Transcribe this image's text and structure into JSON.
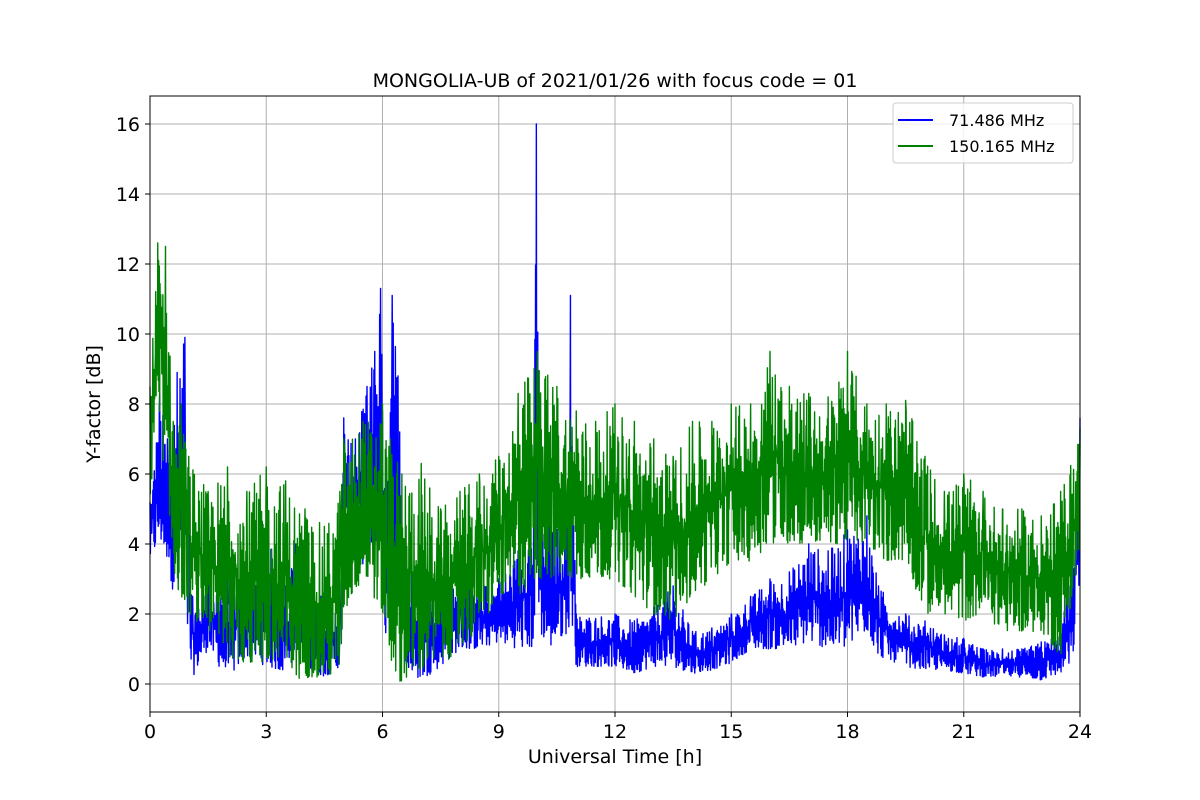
{
  "chart_data": {
    "type": "line",
    "title": "MONGOLIA-UB of 2021/01/26 with focus code = 01",
    "xlabel": "Universal Time [h]",
    "ylabel": "Y-factor [dB]",
    "xlim": [
      0,
      24
    ],
    "ylim": [
      -0.8,
      16.8
    ],
    "xticks": [
      0,
      3,
      6,
      9,
      12,
      15,
      18,
      21,
      24
    ],
    "yticks": [
      0,
      2,
      4,
      6,
      8,
      10,
      12,
      14,
      16
    ],
    "grid": true,
    "legend_position": "top-right",
    "series": [
      {
        "name": "71.486 MHz",
        "color": "#0000ff",
        "envelope": [
          [
            0.0,
            3.5,
            5.2
          ],
          [
            0.25,
            4.0,
            8.3
          ],
          [
            0.45,
            3.5,
            7.0
          ],
          [
            0.7,
            2.0,
            8.9
          ],
          [
            0.9,
            3.0,
            9.9
          ],
          [
            1.0,
            0.5,
            5.0
          ],
          [
            1.1,
            0.2,
            2.5
          ],
          [
            1.5,
            1.0,
            3.0
          ],
          [
            2.0,
            0.1,
            3.2
          ],
          [
            2.5,
            0.8,
            3.0
          ],
          [
            3.0,
            0.5,
            4.2
          ],
          [
            3.5,
            0.3,
            2.8
          ],
          [
            3.75,
            0.8,
            4.0
          ],
          [
            4.0,
            0.5,
            3.0
          ],
          [
            4.5,
            0.2,
            2.5
          ],
          [
            4.9,
            0.5,
            2.0
          ],
          [
            5.0,
            3.0,
            7.6
          ],
          [
            5.3,
            3.3,
            7.0
          ],
          [
            5.6,
            3.5,
            8.5
          ],
          [
            5.8,
            4.0,
            9.5
          ],
          [
            5.95,
            4.0,
            11.3
          ],
          [
            6.1,
            0.8,
            4.0
          ],
          [
            6.25,
            3.0,
            11.1
          ],
          [
            6.4,
            2.0,
            8.8
          ],
          [
            6.6,
            0.3,
            4.0
          ],
          [
            7.0,
            0.1,
            3.5
          ],
          [
            7.5,
            0.5,
            3.0
          ],
          [
            8.0,
            1.0,
            3.0
          ],
          [
            8.5,
            1.0,
            2.8
          ],
          [
            9.0,
            1.2,
            3.0
          ],
          [
            9.5,
            1.0,
            3.8
          ],
          [
            9.9,
            1.0,
            5.0
          ],
          [
            9.97,
            1.5,
            16.0
          ],
          [
            10.05,
            1.5,
            5.0
          ],
          [
            10.3,
            1.0,
            4.5
          ],
          [
            10.8,
            1.5,
            5.0
          ],
          [
            10.85,
            2.0,
            11.1
          ],
          [
            11.0,
            0.5,
            2.0
          ],
          [
            12.0,
            0.5,
            2.0
          ],
          [
            12.5,
            0.3,
            1.8
          ],
          [
            13.0,
            0.5,
            2.2
          ],
          [
            13.5,
            0.5,
            2.8
          ],
          [
            14.0,
            0.3,
            1.5
          ],
          [
            14.5,
            0.4,
            1.6
          ],
          [
            15.0,
            0.6,
            2.0
          ],
          [
            15.5,
            1.0,
            2.5
          ],
          [
            16.0,
            1.0,
            3.0
          ],
          [
            16.5,
            1.0,
            3.2
          ],
          [
            17.0,
            1.2,
            4.0
          ],
          [
            17.5,
            1.0,
            3.8
          ],
          [
            18.0,
            1.0,
            4.4
          ],
          [
            18.5,
            1.5,
            4.8
          ],
          [
            18.8,
            0.8,
            2.8
          ],
          [
            19.5,
            0.5,
            2.0
          ],
          [
            20.0,
            0.4,
            1.8
          ],
          [
            20.5,
            0.4,
            1.4
          ],
          [
            21.0,
            0.3,
            1.3
          ],
          [
            21.5,
            0.2,
            1.0
          ],
          [
            22.0,
            0.2,
            1.0
          ],
          [
            22.5,
            0.2,
            1.0
          ],
          [
            23.0,
            0.1,
            1.2
          ],
          [
            23.5,
            0.3,
            1.5
          ],
          [
            23.8,
            0.5,
            3.5
          ],
          [
            24.0,
            3.0,
            7.6
          ]
        ]
      },
      {
        "name": "150.165 MHz",
        "color": "#008000",
        "envelope": [
          [
            0.0,
            4.5,
            8.5
          ],
          [
            0.2,
            8.5,
            12.6
          ],
          [
            0.4,
            5.5,
            12.5
          ],
          [
            0.6,
            3.0,
            7.5
          ],
          [
            0.8,
            2.5,
            8.0
          ],
          [
            1.0,
            2.0,
            6.5
          ],
          [
            1.5,
            1.5,
            5.5
          ],
          [
            2.0,
            0.8,
            6.2
          ],
          [
            2.5,
            0.5,
            5.5
          ],
          [
            3.0,
            0.5,
            6.2
          ],
          [
            3.5,
            0.0,
            5.8
          ],
          [
            4.0,
            0.2,
            5.0
          ],
          [
            4.5,
            0.1,
            4.5
          ],
          [
            4.9,
            0.3,
            5.5
          ],
          [
            5.0,
            2.0,
            7.0
          ],
          [
            5.5,
            3.0,
            7.5
          ],
          [
            6.0,
            2.0,
            8.0
          ],
          [
            6.2,
            0.5,
            7.0
          ],
          [
            6.5,
            0.0,
            6.0
          ],
          [
            7.0,
            0.3,
            6.3
          ],
          [
            7.5,
            0.5,
            5.0
          ],
          [
            8.0,
            1.0,
            5.5
          ],
          [
            8.5,
            1.5,
            6.0
          ],
          [
            9.0,
            2.5,
            6.5
          ],
          [
            9.5,
            2.5,
            8.3
          ],
          [
            10.0,
            3.0,
            9.5
          ],
          [
            10.5,
            3.0,
            8.5
          ],
          [
            11.0,
            3.0,
            7.8
          ],
          [
            11.5,
            3.0,
            7.5
          ],
          [
            12.0,
            3.0,
            8.0
          ],
          [
            12.5,
            2.5,
            7.5
          ],
          [
            13.0,
            2.0,
            7.0
          ],
          [
            13.5,
            1.8,
            6.5
          ],
          [
            14.0,
            2.5,
            7.5
          ],
          [
            14.5,
            3.0,
            7.5
          ],
          [
            15.0,
            3.5,
            8.0
          ],
          [
            15.5,
            3.5,
            8.0
          ],
          [
            16.0,
            4.0,
            9.5
          ],
          [
            16.5,
            4.0,
            8.5
          ],
          [
            17.0,
            4.0,
            8.3
          ],
          [
            17.5,
            4.0,
            8.2
          ],
          [
            18.0,
            4.0,
            9.5
          ],
          [
            18.5,
            4.0,
            8.0
          ],
          [
            19.0,
            3.5,
            8.0
          ],
          [
            19.5,
            3.5,
            8.1
          ],
          [
            20.0,
            2.0,
            6.5
          ],
          [
            20.5,
            2.0,
            5.5
          ],
          [
            21.0,
            1.8,
            6.0
          ],
          [
            21.5,
            2.0,
            5.5
          ],
          [
            22.0,
            1.5,
            5.0
          ],
          [
            22.5,
            1.5,
            5.0
          ],
          [
            23.0,
            1.5,
            4.8
          ],
          [
            23.5,
            0.8,
            5.5
          ],
          [
            24.0,
            3.5,
            7.3
          ]
        ]
      }
    ]
  }
}
